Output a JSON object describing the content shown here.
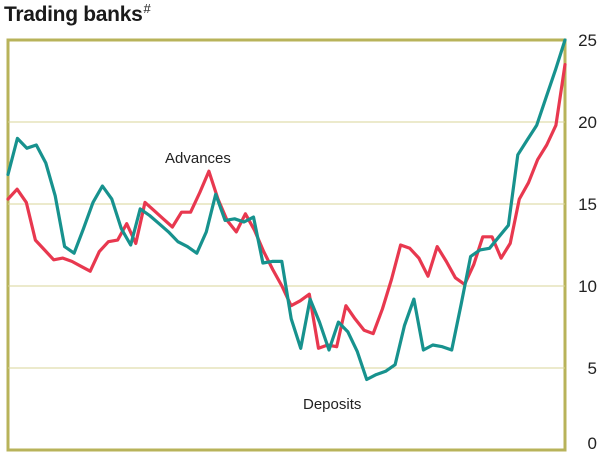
{
  "chart_data": {
    "type": "line",
    "title": "Trading banks",
    "title_mark": "#",
    "ylim": [
      0,
      25
    ],
    "yticks": [
      "0",
      "5",
      "10",
      "15",
      "20",
      "25"
    ],
    "grid": "horizontal",
    "colors": {
      "frame": "#b8b35a",
      "grid": "#d8d49a",
      "advances": "#e8384f",
      "deposits": "#17928e"
    },
    "series": [
      {
        "name": "Advances",
        "values": [
          15.3,
          15.9,
          15.1,
          12.8,
          12.2,
          11.6,
          11.7,
          11.5,
          11.2,
          10.9,
          12.1,
          12.7,
          12.8,
          13.8,
          12.6,
          15.1,
          14.6,
          14.1,
          13.6,
          14.5,
          14.5,
          15.7,
          17.0,
          15.3,
          14.0,
          13.3,
          14.4,
          13.4,
          12.1,
          11.0,
          10.0,
          8.8,
          9.1,
          9.5,
          6.2,
          6.4,
          6.3,
          8.8,
          8.0,
          7.3,
          7.1,
          8.6,
          10.4,
          12.5,
          12.3,
          11.7,
          10.6,
          12.4,
          11.5,
          10.5,
          10.1,
          11.3,
          13.0,
          13.0,
          11.7,
          12.6,
          15.3,
          16.3,
          17.7,
          18.6,
          19.8,
          23.5
        ]
      },
      {
        "name": "Deposits",
        "values": [
          16.8,
          19.0,
          18.4,
          18.6,
          17.5,
          15.5,
          12.4,
          12.0,
          13.5,
          15.1,
          16.1,
          15.3,
          13.5,
          12.5,
          14.7,
          14.3,
          13.8,
          13.3,
          12.7,
          12.4,
          12.0,
          13.3,
          15.6,
          14.0,
          14.1,
          13.9,
          14.2,
          11.4,
          11.5,
          11.5,
          8.0,
          6.2,
          9.2,
          7.8,
          6.1,
          7.8,
          7.2,
          6.0,
          4.3,
          4.6,
          4.8,
          5.2,
          7.6,
          9.2,
          6.1,
          6.4,
          6.3,
          6.1,
          8.9,
          11.8,
          12.2,
          12.3,
          13.0,
          13.7,
          18.0,
          18.9,
          19.8,
          21.5,
          23.2,
          25.0
        ]
      }
    ],
    "annotations": [
      "Advances",
      "Deposits"
    ]
  }
}
